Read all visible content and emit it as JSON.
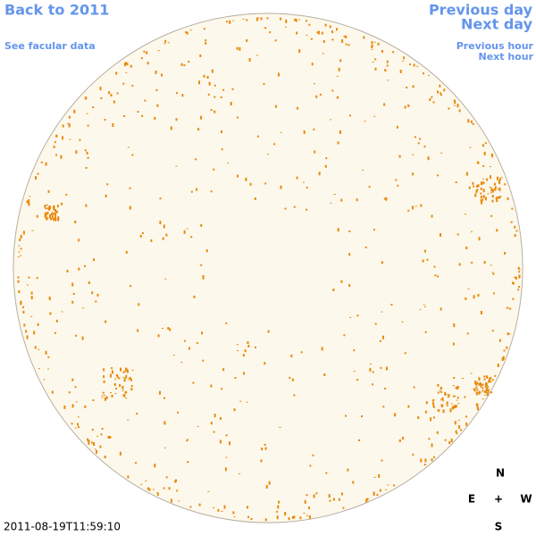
{
  "header": {
    "back_link": "Back to 2011",
    "facular_link": "See facular data",
    "previous_day": "Previous day",
    "next_day": "Next day",
    "previous_hour": "Previous hour",
    "next_hour": "Next hour"
  },
  "timestamp": "2011-08-19T11:59:10",
  "compass": {
    "north": "N",
    "east": "E",
    "center": "+",
    "west": "W",
    "south": "S"
  }
}
